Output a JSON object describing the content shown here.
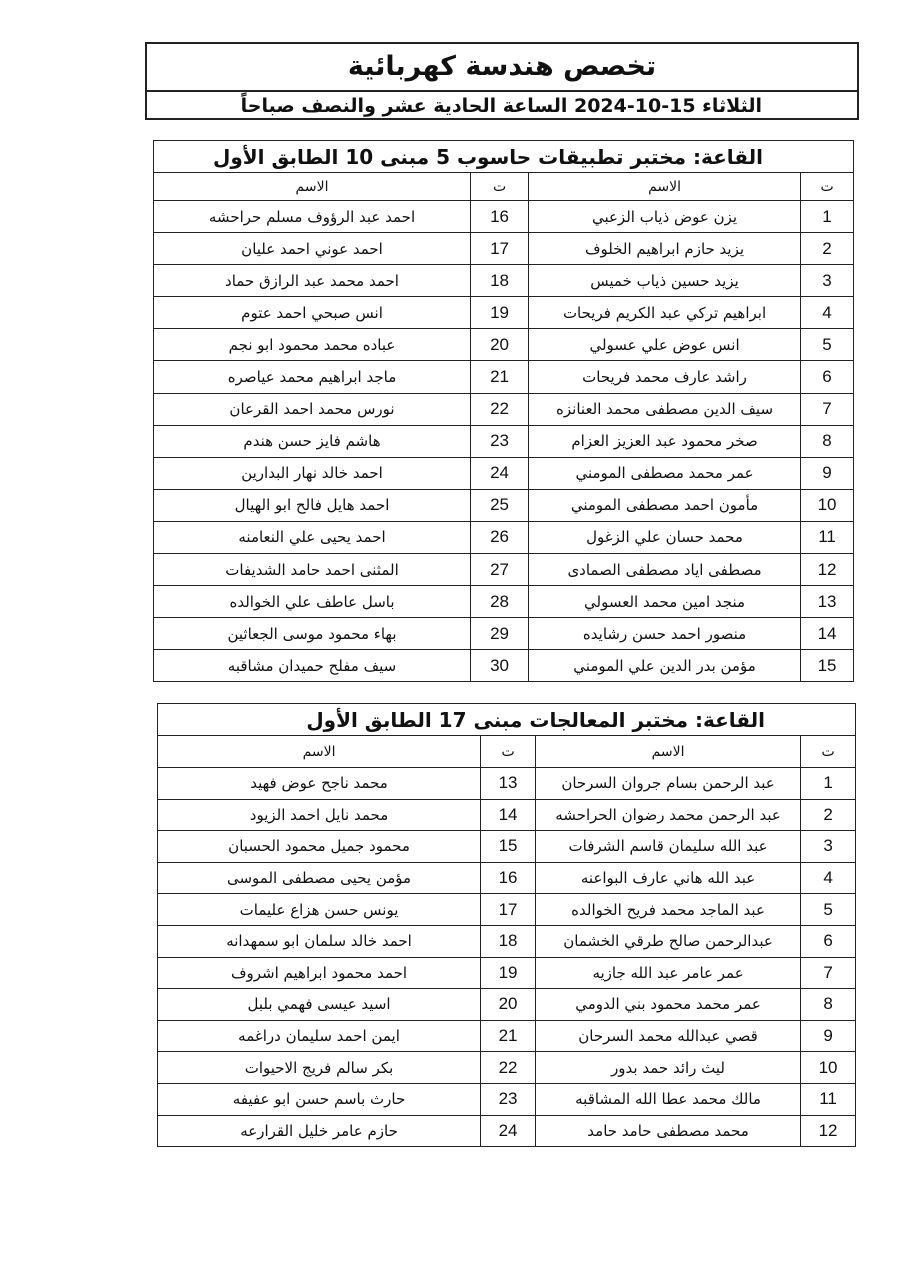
{
  "header": {
    "title": "تخصص هندسة كهربائية",
    "subtitle": "الثلاثاء 15-10-2024   الساعة الحادية عشر والنصف صباحاً"
  },
  "tables": [
    {
      "title": "القاعة: مختبر تطبيقات حاسوب 5 مبنى 10 الطابق الأول",
      "col_num": "ت",
      "col_name": "الاسم",
      "right": [
        [
          "1",
          "يزن عوض ذياب الزعبي"
        ],
        [
          "2",
          "يزيد حازم ابراهيم الخلوف"
        ],
        [
          "3",
          "يزيد حسين ذياب خميس"
        ],
        [
          "4",
          "ابراهيم تركي عبد الكريم فريحات"
        ],
        [
          "5",
          "انس عوض علي عسولي"
        ],
        [
          "6",
          "راشد عارف محمد فريحات"
        ],
        [
          "7",
          "سيف الدين مصطفى محمد العنانزه"
        ],
        [
          "8",
          "صخر محمود عبد العزيز العزام"
        ],
        [
          "9",
          "عمر محمد مصطفى المومني"
        ],
        [
          "10",
          "مأمون احمد مصطفى المومني"
        ],
        [
          "11",
          "محمد حسان علي الزغول"
        ],
        [
          "12",
          "مصطفى اياد مصطفى الصمادى"
        ],
        [
          "13",
          "منجد امين محمد العسولي"
        ],
        [
          "14",
          "منصور احمد حسن رشايده"
        ],
        [
          "15",
          "مؤمن بدر الدين علي المومني"
        ]
      ],
      "left": [
        [
          "16",
          "احمد عبد الرؤوف مسلم حراحشه"
        ],
        [
          "17",
          "احمد عوني احمد عليان"
        ],
        [
          "18",
          "احمد محمد عبد الرازق حماد"
        ],
        [
          "19",
          "انس صبحي احمد عتوم"
        ],
        [
          "20",
          "عباده محمد محمود ابو نجم"
        ],
        [
          "21",
          "ماجد ابراهيم محمد عياصره"
        ],
        [
          "22",
          "نورس محمد احمد القرعان"
        ],
        [
          "23",
          "هاشم فايز حسن هندم"
        ],
        [
          "24",
          "احمد خالد نهار البدارين"
        ],
        [
          "25",
          "احمد هايل فالح ابو الهيال"
        ],
        [
          "26",
          "احمد يحيى علي النعامنه"
        ],
        [
          "27",
          "المثنى احمد حامد الشديفات"
        ],
        [
          "28",
          "باسل عاطف علي الخوالده"
        ],
        [
          "29",
          "بهاء محمود موسى الجعاثين"
        ],
        [
          "30",
          "سيف مفلح حميدان مشاقبه"
        ]
      ]
    },
    {
      "title": "القاعة: مختبر المعالجات مبنى 17 الطابق الأول",
      "col_num": "ت",
      "col_name": "الاسم",
      "right": [
        [
          "1",
          "عبد الرحمن بسام جروان السرحان"
        ],
        [
          "2",
          "عبد الرحمن محمد رضوان الحراحشه"
        ],
        [
          "3",
          "عبد الله سليمان قاسم الشرفات"
        ],
        [
          "4",
          "عبد الله هاني عارف البواعنه"
        ],
        [
          "5",
          "عبد الماجد محمد فريح الخوالده"
        ],
        [
          "6",
          "عبدالرحمن صالح طرقي الخشمان"
        ],
        [
          "7",
          "عمر عامر عبد الله جازيه"
        ],
        [
          "8",
          "عمر محمد محمود بني الدومي"
        ],
        [
          "9",
          "قصي عبدالله محمد السرحان"
        ],
        [
          "10",
          "ليث رائد حمد بدور"
        ],
        [
          "11",
          "مالك محمد عطا الله المشاقبه"
        ],
        [
          "12",
          "محمد مصطفى حامد حامد"
        ]
      ],
      "left": [
        [
          "13",
          "محمد ناجح عوض فهيد"
        ],
        [
          "14",
          "محمد نايل احمد الزيود"
        ],
        [
          "15",
          "محمود جميل محمود الحسبان"
        ],
        [
          "16",
          "مؤمن يحيى مصطفى الموسى"
        ],
        [
          "17",
          "يونس حسن هزاع عليمات"
        ],
        [
          "18",
          "احمد خالد سلمان ابو سمهدانه"
        ],
        [
          "19",
          "احمد محمود ابراهيم اشروف"
        ],
        [
          "20",
          "اسيد عيسى فهمي بلبل"
        ],
        [
          "21",
          "ايمن احمد سليمان دراغمه"
        ],
        [
          "22",
          "بكر سالم فريج الاحيوات"
        ],
        [
          "23",
          "حارث باسم حسن ابو عفيفه"
        ],
        [
          "24",
          "حازم عامر خليل القرارعه"
        ]
      ]
    }
  ]
}
